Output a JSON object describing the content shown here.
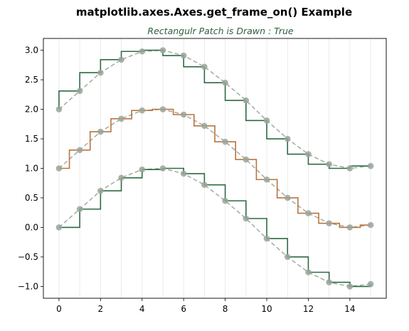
{
  "chart_data": {
    "type": "line",
    "title": "matplotlib.axes.Axes.get_frame_on() Example",
    "subtitle": "Rectangulr Patch is Drawn : True",
    "xlabel": "",
    "ylabel": "",
    "xlim": [
      -0.75,
      15.75
    ],
    "ylim": [
      -1.2,
      3.2
    ],
    "grid": "x",
    "xticks": [
      0,
      2,
      4,
      6,
      8,
      10,
      12,
      14
    ],
    "yticks": [
      -1.0,
      -0.5,
      0.0,
      0.5,
      1.0,
      1.5,
      2.0,
      2.5,
      3.0
    ],
    "ytick_labels": [
      "−1.0",
      "−0.5",
      "0.0",
      "0.5",
      "1.0",
      "1.5",
      "2.0",
      "2.5",
      "3.0"
    ],
    "x": [
      0,
      1,
      2,
      3,
      4,
      5,
      6,
      7,
      8,
      9,
      10,
      11,
      12,
      13,
      14,
      15
    ],
    "series": [
      {
        "step_where": "pre",
        "color": "#2d6a45",
        "values": [
          2.0,
          2.31,
          2.62,
          2.84,
          2.98,
          3.0,
          2.91,
          2.72,
          2.45,
          2.15,
          1.81,
          1.5,
          1.24,
          1.07,
          1.0,
          1.04
        ]
      },
      {
        "step_where": "mid",
        "color": "#b8753d",
        "values": [
          1.0,
          1.31,
          1.62,
          1.84,
          1.98,
          2.0,
          1.91,
          1.72,
          1.45,
          1.15,
          0.81,
          0.5,
          0.24,
          0.07,
          0.0,
          0.04
        ]
      },
      {
        "step_where": "post",
        "color": "#2d6a45",
        "values": [
          0.0,
          0.31,
          0.62,
          0.84,
          0.98,
          1.0,
          0.91,
          0.72,
          0.45,
          0.15,
          -0.19,
          -0.5,
          -0.76,
          -0.93,
          -1.0,
          -0.96
        ]
      }
    ],
    "guide_style": {
      "line_color": "#a0aca0",
      "marker_color": "#9aa49a",
      "dash": "dashed"
    }
  }
}
